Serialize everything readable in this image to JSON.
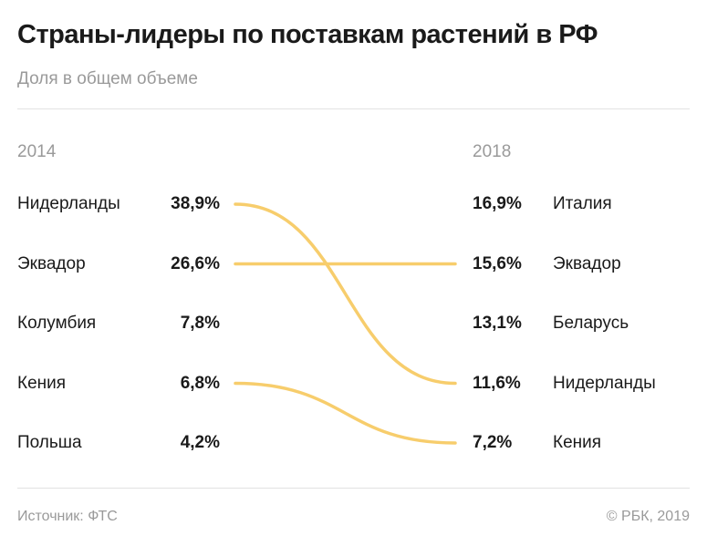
{
  "title": "Страны-лидеры по поставкам растений в РФ",
  "subtitle": "Доля в общем объеме",
  "source": "Источник: ФТС",
  "copyright": "© РБК, 2019",
  "line_color": "#F7CD6C",
  "chart_data": {
    "type": "slope",
    "left_label": "2014",
    "right_label": "2018",
    "left": [
      {
        "country": "Нидерланды",
        "value": "38,9%"
      },
      {
        "country": "Эквадор",
        "value": "26,6%"
      },
      {
        "country": "Колумбия",
        "value": "7,8%"
      },
      {
        "country": "Кения",
        "value": "6,8%"
      },
      {
        "country": "Польша",
        "value": "4,2%"
      }
    ],
    "right": [
      {
        "country": "Италия",
        "value": "16,9%"
      },
      {
        "country": "Эквадор",
        "value": "15,6%"
      },
      {
        "country": "Беларусь",
        "value": "13,1%"
      },
      {
        "country": "Нидерланды",
        "value": "11,6%"
      },
      {
        "country": "Кения",
        "value": "7,2%"
      }
    ],
    "links": [
      {
        "country": "Нидерланды",
        "from_rank": 1,
        "to_rank": 4
      },
      {
        "country": "Эквадор",
        "from_rank": 2,
        "to_rank": 2
      },
      {
        "country": "Кения",
        "from_rank": 4,
        "to_rank": 5
      }
    ]
  }
}
